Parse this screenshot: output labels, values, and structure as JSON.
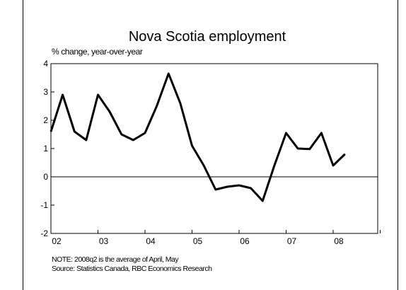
{
  "chart_data": {
    "type": "line",
    "title": "Nova Scotia employment",
    "ylabel": "% change, year-over-year",
    "xlabel": "",
    "ylim": [
      -2,
      4
    ],
    "yticks": [
      "4",
      "3",
      "2",
      "1",
      "0",
      "-1",
      "-2"
    ],
    "xtick_labels": [
      "02",
      "03",
      "04",
      "05",
      "06",
      "07",
      "08"
    ],
    "legend": "none",
    "grid": false,
    "zero_line": true,
    "series": [
      {
        "color": "#000000",
        "x": [
          "2002Q1",
          "2002Q2",
          "2002Q3",
          "2002Q4",
          "2003Q1",
          "2003Q2",
          "2003Q3",
          "2003Q4",
          "2004Q1",
          "2004Q2",
          "2004Q3",
          "2004Q4",
          "2005Q1",
          "2005Q2",
          "2005Q3",
          "2005Q4",
          "2006Q1",
          "2006Q2",
          "2006Q3",
          "2006Q4",
          "2007Q1",
          "2007Q2",
          "2007Q3",
          "2007Q4",
          "2008Q1",
          "2008Q2"
        ],
        "values": [
          1.6,
          2.9,
          1.6,
          1.3,
          2.9,
          2.3,
          1.5,
          1.3,
          1.55,
          2.5,
          3.65,
          2.6,
          1.1,
          0.4,
          -0.45,
          -0.35,
          -0.3,
          -0.4,
          -0.85,
          0.4,
          1.55,
          1.0,
          0.98,
          1.55,
          0.4,
          0.8
        ]
      }
    ]
  },
  "notes": {
    "note": "NOTE: 2008q2 is the average of April, May",
    "source": "Source: Statistics Canada, RBC Economics Research"
  }
}
